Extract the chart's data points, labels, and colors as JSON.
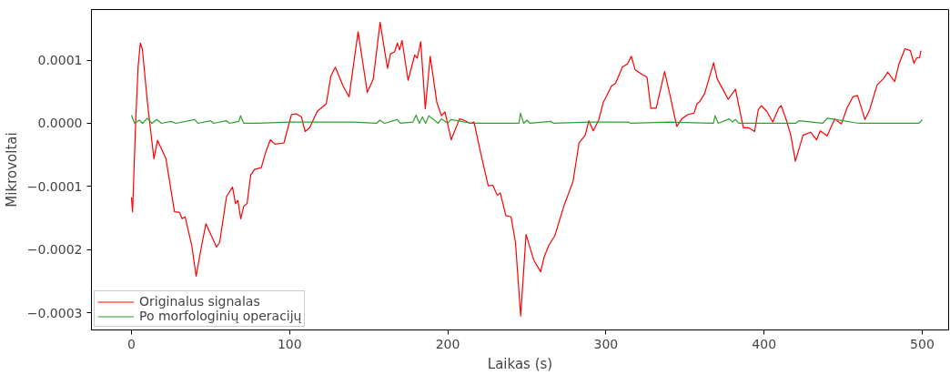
{
  "chart_data": {
    "type": "line",
    "xlabel": "Laikas (s)",
    "ylabel": "Mikrovoltai",
    "xlim": [
      -25.3,
      516.7
    ],
    "ylim": [
      -0.000327,
      0.00018
    ],
    "xticks": [
      0,
      100,
      200,
      300,
      400,
      500
    ],
    "yticks": [
      {
        "value": 0.0001,
        "label": "0.0001"
      },
      {
        "value": 0,
        "label": "0.0000"
      },
      {
        "value": -0.0001,
        "label": "−0.0001"
      },
      {
        "value": -0.0002,
        "label": "−0.0002"
      },
      {
        "value": -0.0003,
        "label": "−0.0003"
      }
    ],
    "grid": false,
    "legend": "bottom left",
    "line_style": "solid",
    "marker": "none",
    "series": [
      {
        "name": "Originalus signalas",
        "color": "#ff0000",
        "x": [
          0,
          0.7,
          2.7,
          4.2,
          5.6,
          6.9,
          10.3,
          14.2,
          16.5,
          21.8,
          27.2,
          30.4,
          32,
          33.9,
          38.1,
          40.9,
          44.4,
          47.1,
          50.5,
          53.8,
          55.8,
          60.1,
          63.9,
          65.8,
          67.3,
          69.1,
          71,
          73.1,
          75.4,
          77.9,
          82.1,
          84.6,
          87.8,
          90.7,
          96.4,
          101.2,
          104.1,
          107.5,
          109.8,
          112.7,
          117.5,
          123.2,
          126.1,
          128.9,
          133.8,
          137.6,
          143.3,
          149.1,
          152.9,
          157.2,
          161.9,
          163.8,
          166.3,
          168.2,
          169.5,
          171.1,
          174.9,
          179.1,
          180.7,
          182.9,
          185.8,
          188.9,
          193.1,
          196,
          198.2,
          202.2,
          207.4,
          210.2,
          214.1,
          216.6,
          220.8,
          225.6,
          228.5,
          231.3,
          233.2,
          236.7,
          240,
          242.8,
          246.1,
          249.5,
          254.3,
          258.7,
          261,
          263.9,
          267.7,
          273.4,
          279.2,
          283,
          286.9,
          289.2,
          292,
          295.4,
          298.3,
          301.2,
          303.5,
          306,
          310.4,
          313.6,
          316.1,
          318.4,
          323.1,
          326,
          328.4,
          331.8,
          337.1,
          340.3,
          344.8,
          348,
          351.9,
          355.7,
          357.6,
          359.5,
          362.4,
          368.1,
          370.4,
          373.5,
          377.3,
          381.9,
          386.9,
          390.2,
          394,
          396.3,
          398.2,
          401.7,
          405.5,
          409.3,
          410.8,
          414.1,
          416.9,
          419.8,
          424.6,
          429.4,
          433.2,
          435.5,
          439.9,
          444.7,
          448.9,
          452.4,
          456.2,
          459.1,
          463.8,
          466.7,
          471.5,
          475.3,
          478.2,
          482.6,
          485.3,
          489.1,
          492.5,
          494.8,
          496.3,
          498.3,
          499.2
        ],
        "values": [
          -0.000117,
          -0.00014,
          5e-06,
          8.9e-05,
          0.000127,
          0.000117,
          2.8e-05,
          -5.6e-05,
          -2.7e-05,
          -5.6e-05,
          -0.00014,
          -0.000141,
          -0.000151,
          -0.000148,
          -0.000193,
          -0.000242,
          -0.000193,
          -0.000159,
          -0.000178,
          -0.000196,
          -0.000188,
          -0.000116,
          -0.000101,
          -0.000127,
          -0.000122,
          -0.000151,
          -0.000131,
          -0.000127,
          -8.2e-05,
          -7.3e-05,
          -7e-05,
          -4.8e-05,
          -2.6e-05,
          -3.3e-05,
          -3.1e-05,
          1.4e-05,
          1.5e-05,
          1e-05,
          -1.3e-05,
          -7e-06,
          1.9e-05,
          3.1e-05,
          7.5e-05,
          8.9e-05,
          5.9e-05,
          4.2e-05,
          0.000145,
          4.9e-05,
          7e-05,
          0.00016,
          8.7e-05,
          0.00011,
          0.000113,
          0.000127,
          0.000116,
          0.000131,
          6.8e-05,
          0.000108,
          0.000103,
          0.000129,
          2.3e-05,
          0.000106,
          3.3e-05,
          1.2e-05,
          1.8e-05,
          -2.6e-05,
          7e-06,
          5e-06,
          0,
          2e-06,
          -4.7e-05,
          -9.9e-05,
          -9.8e-05,
          -0.000114,
          -0.00011,
          -0.000146,
          -0.000148,
          -0.000188,
          -0.000305,
          -0.000176,
          -0.000216,
          -0.000235,
          -0.000211,
          -0.000193,
          -0.000178,
          -0.000131,
          -9.2e-05,
          -3.1e-05,
          -1.9e-05,
          4e-06,
          -1.2e-05,
          5e-06,
          3.3e-05,
          4.7e-05,
          5.9e-05,
          6.3e-05,
          8.9e-05,
          9.4e-05,
          0.000106,
          8.5e-05,
          7.7e-05,
          7.3e-05,
          2.4e-05,
          2.4e-05,
          8.2e-05,
          4.7e-05,
          -5e-06,
          7e-06,
          1.4e-05,
          1.6e-05,
          3.1e-05,
          3.5e-05,
          4.7e-05,
          9.6e-05,
          7e-05,
          5.6e-05,
          3.8e-05,
          5.4e-05,
          -7e-06,
          -7e-06,
          -1.3e-05,
          2.1e-05,
          2.8e-05,
          1.9e-05,
          2e-06,
          2.4e-05,
          2.8e-05,
          5e-06,
          -1.9e-05,
          -6e-05,
          -1.9e-05,
          -1.4e-05,
          -2.6e-05,
          -1.2e-05,
          -2e-05,
          7e-06,
          -1e-06,
          2.4e-05,
          4.2e-05,
          4.4e-05,
          6e-06,
          2.1e-05,
          6.1e-05,
          7e-05,
          8.1e-05,
          6.6e-05,
          9.4e-05,
          0.000118,
          0.000115,
          9.5e-05,
          0.000103,
          0.000104,
          0.000115
        ]
      },
      {
        "name": "Po morfologinių operacijų",
        "color": "#2ca02c",
        "x": [
          0,
          2,
          5,
          7,
          10,
          13,
          16,
          19,
          25,
          28,
          40,
          42,
          50,
          52,
          60,
          62,
          68,
          69,
          71,
          80,
          100,
          120,
          140,
          155,
          157,
          160,
          168,
          170,
          178,
          180,
          182,
          184,
          186,
          188,
          194,
          196,
          200,
          202,
          215,
          240,
          245,
          246,
          248,
          250,
          252,
          265,
          267,
          290,
          314,
          316,
          340,
          368,
          369,
          371,
          378,
          380,
          382,
          384,
          400,
          420,
          422,
          437,
          440,
          460,
          498,
          500
        ],
        "values": [
          1.3e-05,
          0,
          5e-06,
          0,
          8e-06,
          0,
          6e-06,
          0,
          3e-06,
          0,
          6e-06,
          0,
          4e-06,
          0,
          4e-06,
          0,
          3e-06,
          1.2e-05,
          0,
          0,
          2e-06,
          2e-06,
          2e-06,
          0,
          5e-06,
          0,
          6e-06,
          0,
          2e-06,
          1.3e-05,
          0,
          1e-05,
          0,
          1.2e-05,
          0,
          7e-06,
          0,
          6e-06,
          0,
          0,
          0,
          1.6e-05,
          0,
          5e-06,
          0,
          3e-06,
          0,
          2e-06,
          2e-06,
          0,
          2e-06,
          0,
          1.2e-05,
          0,
          7e-06,
          2e-06,
          6e-06,
          0,
          0,
          0,
          4e-06,
          0,
          8e-06,
          0,
          0,
          6e-06
        ]
      }
    ]
  }
}
